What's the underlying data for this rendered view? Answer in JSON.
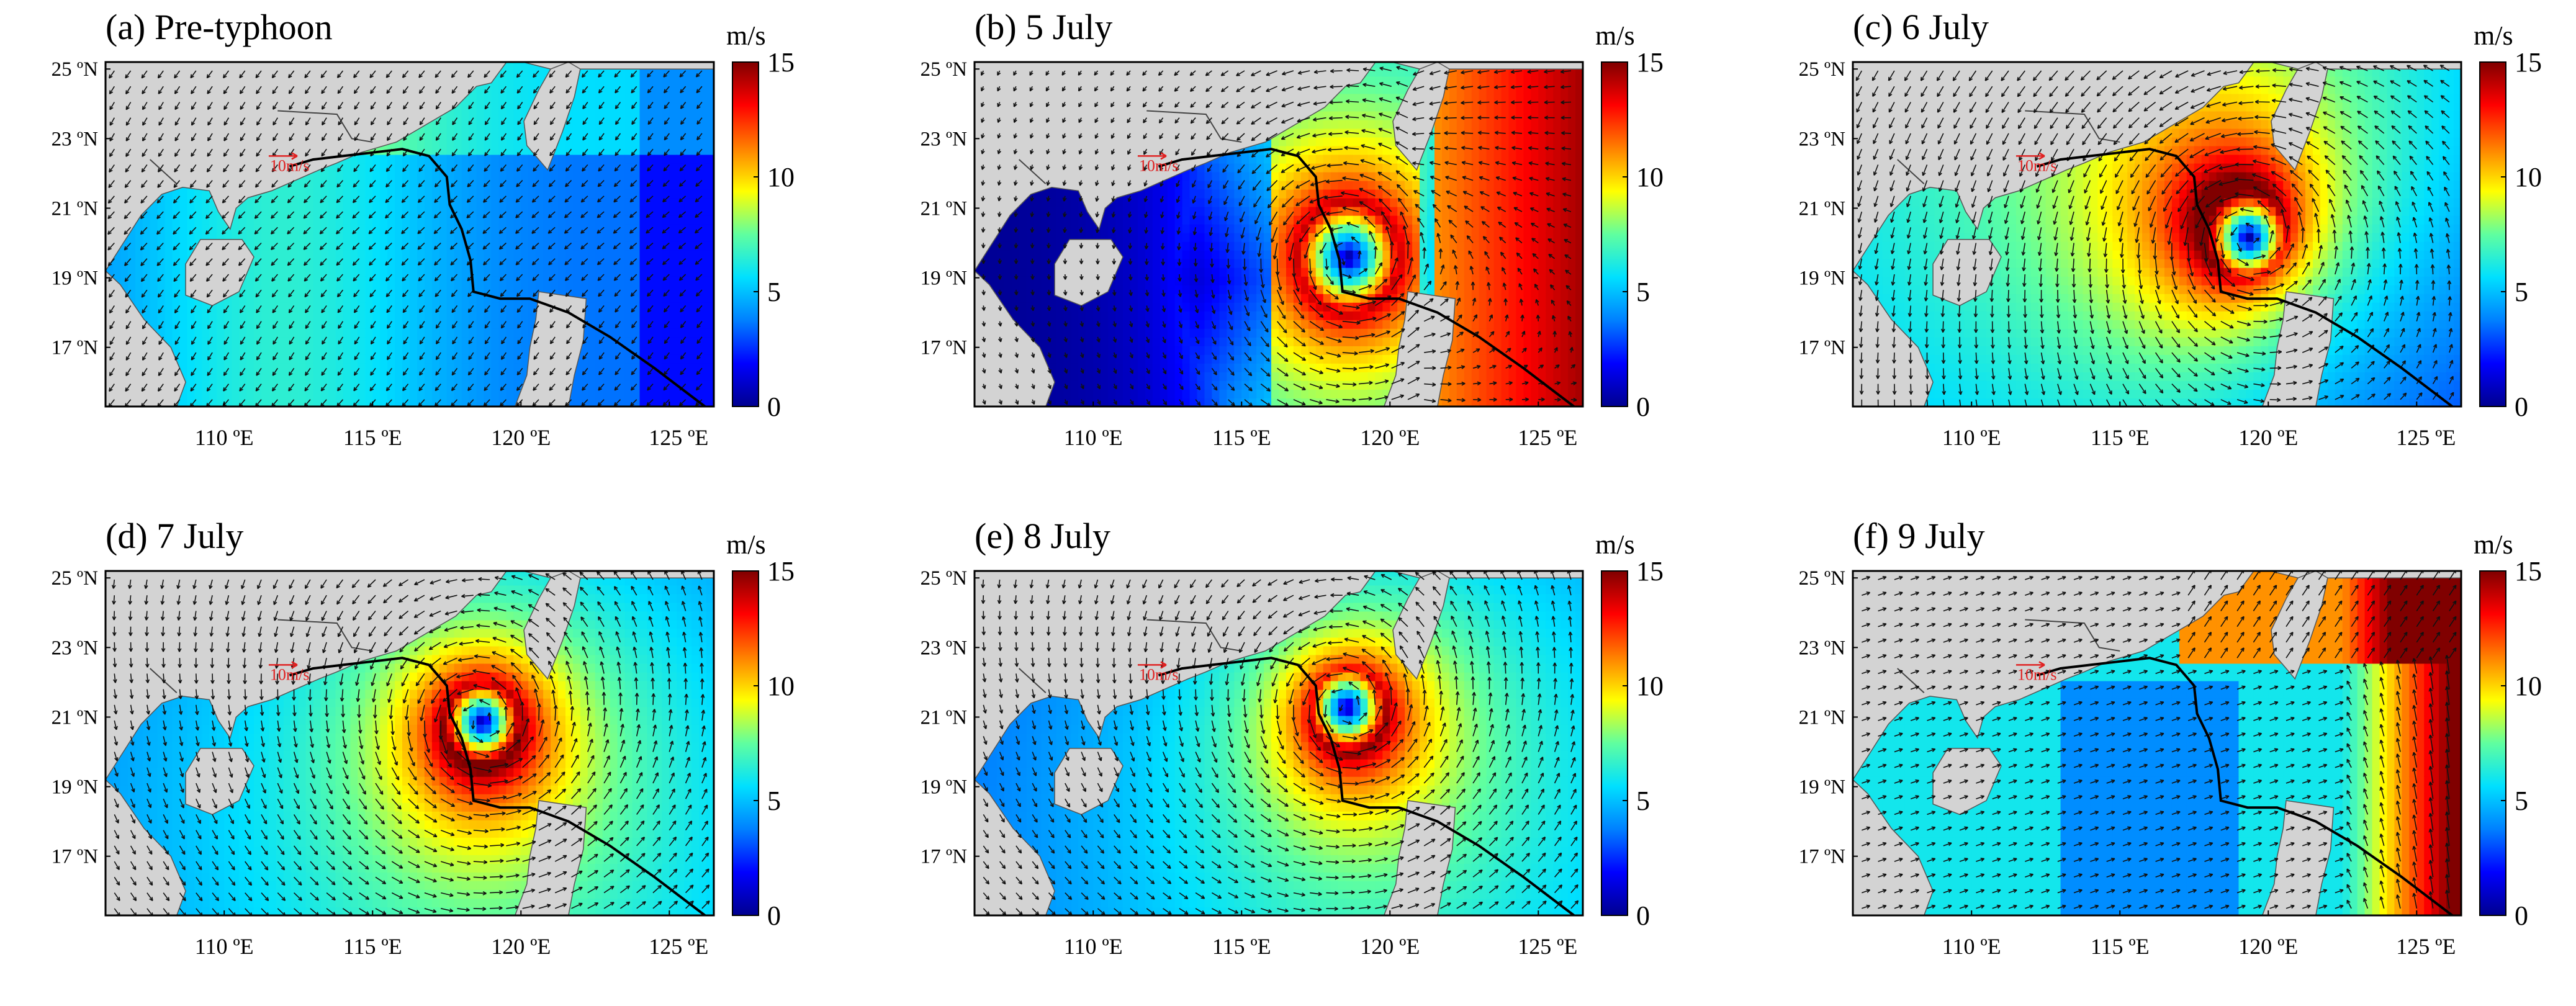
{
  "figure": {
    "panels": [
      {
        "id": "a",
        "title": "(a) Pre-typhoon"
      },
      {
        "id": "b",
        "title": "(b) 5 July"
      },
      {
        "id": "c",
        "title": "(c) 6 July"
      },
      {
        "id": "d",
        "title": "(d) 7 July"
      },
      {
        "id": "e",
        "title": "(e) 8 July"
      },
      {
        "id": "f",
        "title": "(f) 9 July"
      }
    ],
    "lat_ticks": [
      "25 ºN",
      "23 ºN",
      "21 ºN",
      "19 ºN",
      "17 ºN"
    ],
    "lon_ticks": [
      "110 ºE",
      "115 ºE",
      "120 ºE",
      "125 ºE"
    ],
    "colorbar": {
      "unit": "m/s",
      "ticks": [
        "15",
        "10",
        "5",
        "0"
      ],
      "range": [
        0,
        15
      ],
      "colors": [
        "#00008f",
        "#0000ff",
        "#0080ff",
        "#00e0ff",
        "#60ff9f",
        "#ffff00",
        "#ff8000",
        "#ff0000",
        "#800000"
      ]
    },
    "scale_vector_label": "10m/s",
    "land_color": "#d3d3d3"
  }
}
